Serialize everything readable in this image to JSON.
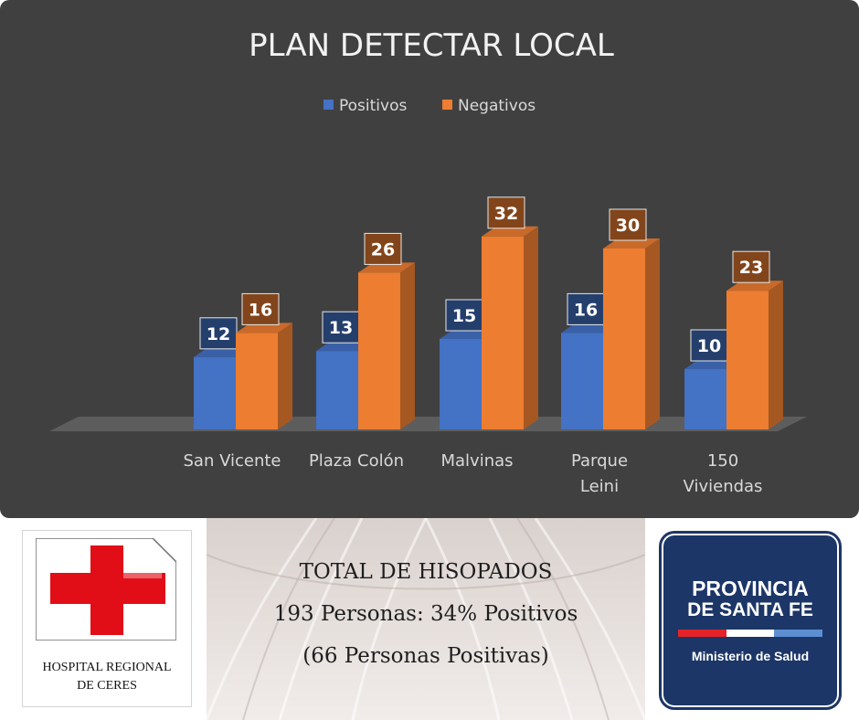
{
  "chart_data": {
    "type": "bar",
    "title": "PLAN DETECTAR LOCAL",
    "categories": [
      [
        "San Vicente"
      ],
      [
        "Plaza Colón"
      ],
      [
        "Malvinas"
      ],
      [
        "Parque",
        "Leini"
      ],
      [
        "150",
        "Viviendas"
      ]
    ],
    "series": [
      {
        "name": "Positivos",
        "color": "#4472c4",
        "values": [
          12,
          13,
          15,
          16,
          10
        ]
      },
      {
        "name": "Negativos",
        "color": "#ed7d31",
        "values": [
          16,
          26,
          32,
          30,
          23
        ]
      }
    ],
    "legend_position": "top",
    "grid": false,
    "ylim": [
      0,
      35
    ],
    "style": "3d-column"
  },
  "info": {
    "line1": "TOTAL DE HISOPADOS",
    "line2": "193 Personas: 34% Positivos",
    "line3": "(66 Personas Positivas)"
  },
  "hospital_logo": {
    "line1": "HOSPITAL REGIONAL",
    "line2": "DE CERES",
    "cross_color": "#e10e18"
  },
  "province_logo": {
    "line1": "PROVINCIA",
    "line2": "DE SANTA FE",
    "line3": "Ministerio de Salud",
    "background": "#1c3667",
    "stripe_colors": [
      "#e32327",
      "#ffffff",
      "#5b8fd1"
    ]
  }
}
